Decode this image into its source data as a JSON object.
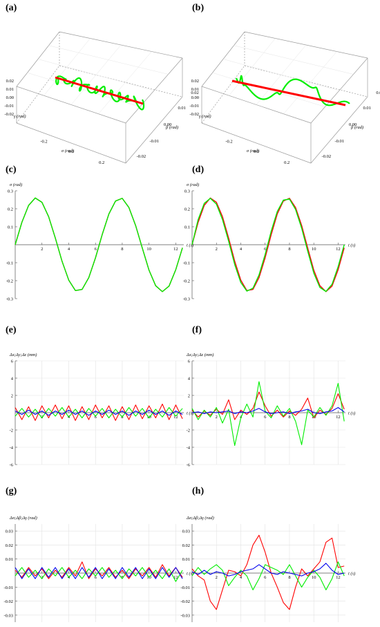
{
  "panel_labels": [
    "(a)",
    "(b)",
    "(c)",
    "(d)",
    "(e)",
    "(f)",
    "(g)",
    "(h)"
  ],
  "colors": {
    "reference": "#ff0000",
    "measured": "#00ee00",
    "third": "#0000ee",
    "grid": "#dddddd",
    "box": "#888888"
  },
  "chart_data": [
    {
      "panel": "(a)",
      "type": "line3d",
      "axis_labels": {
        "x": "σ (rad)",
        "y": "β (rad)",
        "z": "γ (rad)"
      },
      "x_ticks": [
        "-0.2",
        "0.0",
        "0.2"
      ],
      "y_ticks": [
        "0.02",
        "0.01",
        "0.00",
        "-0.01",
        "-0.02"
      ],
      "z_ticks": [
        "0.02",
        "0.01",
        "0.00",
        "-0.01",
        "-0.02"
      ],
      "series": [
        {
          "color": "#ff0000",
          "points": [
            [
              -0.26,
              0.0,
              0.0
            ],
            [
              0.26,
              0.0,
              0.0
            ]
          ]
        },
        {
          "color": "#00ee00",
          "pattern": "dense oscillation around reference",
          "amplitude_beta": 0.004,
          "amplitude_gamma": 0.004
        }
      ]
    },
    {
      "panel": "(b)",
      "type": "line3d",
      "axis_labels": {
        "x": "σ (rad)",
        "y": "β (rad)",
        "z": "γ (rad)"
      },
      "x_ticks": [
        "-0.2",
        "0.0",
        "0.2"
      ],
      "y_ticks": [
        "0.02",
        "0.01",
        "0.00",
        "-0.01",
        "-0.02"
      ],
      "z_ticks": [
        "0.02",
        "0.01",
        "0.00",
        "-0.01",
        "-0.02"
      ],
      "series": [
        {
          "color": "#ff0000",
          "points": [
            [
              -0.26,
              0.0,
              0.0
            ],
            [
              0.26,
              0.0,
              0.0
            ]
          ]
        },
        {
          "color": "#00ee00",
          "pattern": "large loops around reference",
          "amplitude_beta": 0.012,
          "amplitude_gamma": 0.01
        }
      ]
    },
    {
      "panel": "(c)",
      "type": "line",
      "ylabel": "σ (rad)",
      "xlabel": "t (s)",
      "xlim": [
        0,
        12.6
      ],
      "ylim": [
        -0.3,
        0.3
      ],
      "x_ticks": [
        2,
        4,
        6,
        8,
        10,
        12
      ],
      "y_ticks": [
        -0.3,
        -0.2,
        -0.1,
        0.1,
        0.2,
        0.3
      ],
      "x": [
        0,
        0.5,
        1,
        1.5,
        2,
        2.5,
        3,
        3.5,
        4,
        4.5,
        5,
        5.5,
        6,
        6.5,
        7,
        7.5,
        8,
        8.5,
        9,
        9.5,
        10,
        10.5,
        11,
        11.5,
        12,
        12.5
      ],
      "series": [
        {
          "color": "#ff0000",
          "values": [
            0,
            0.125,
            0.219,
            0.26,
            0.236,
            0.156,
            0.037,
            -0.092,
            -0.197,
            -0.255,
            -0.249,
            -0.183,
            -0.073,
            0.056,
            0.171,
            0.243,
            0.258,
            0.207,
            0.107,
            -0.019,
            -0.142,
            -0.228,
            -0.261,
            -0.23,
            -0.139,
            -0.017
          ]
        },
        {
          "color": "#00ee00",
          "values": [
            0,
            0.125,
            0.219,
            0.26,
            0.236,
            0.156,
            0.037,
            -0.092,
            -0.197,
            -0.255,
            -0.249,
            -0.183,
            -0.073,
            0.056,
            0.171,
            0.243,
            0.258,
            0.207,
            0.107,
            -0.019,
            -0.142,
            -0.228,
            -0.261,
            -0.23,
            -0.139,
            -0.017
          ]
        }
      ]
    },
    {
      "panel": "(d)",
      "type": "line",
      "ylabel": "σ (rad)",
      "xlabel": "t (s)",
      "xlim": [
        0,
        12.6
      ],
      "ylim": [
        -0.3,
        0.3
      ],
      "x_ticks": [
        2,
        4,
        6,
        8,
        10,
        12
      ],
      "y_ticks": [
        -0.3,
        -0.2,
        -0.1,
        0.1,
        0.2,
        0.3
      ],
      "x": [
        0,
        0.5,
        1,
        1.5,
        2,
        2.5,
        3,
        3.5,
        4,
        4.5,
        5,
        5.5,
        6,
        6.5,
        7,
        7.5,
        8,
        8.5,
        9,
        9.5,
        10,
        10.5,
        11,
        11.5,
        12,
        12.5
      ],
      "series": [
        {
          "color": "#ff0000",
          "values": [
            0,
            0.125,
            0.219,
            0.26,
            0.236,
            0.156,
            0.037,
            -0.092,
            -0.197,
            -0.255,
            -0.249,
            -0.183,
            -0.073,
            0.056,
            0.171,
            0.243,
            0.258,
            0.207,
            0.107,
            -0.019,
            -0.142,
            -0.228,
            -0.261,
            -0.23,
            -0.139,
            -0.017
          ]
        },
        {
          "color": "#00ee00",
          "values": [
            0,
            0.14,
            0.23,
            0.258,
            0.226,
            0.14,
            0.02,
            -0.11,
            -0.21,
            -0.258,
            -0.242,
            -0.168,
            -0.055,
            0.075,
            0.185,
            0.248,
            0.254,
            0.196,
            0.092,
            -0.036,
            -0.158,
            -0.238,
            -0.26,
            -0.22,
            -0.122,
            0.0
          ]
        }
      ]
    },
    {
      "panel": "(e)",
      "type": "line",
      "ylabel": "Δx;Δy;Δz (mm)",
      "xlabel": "t (s)",
      "xlim": [
        0,
        12.6
      ],
      "ylim": [
        -6,
        6
      ],
      "x_ticks": [
        2,
        4,
        6,
        8,
        10,
        12
      ],
      "y_ticks": [
        -6,
        -4,
        -2,
        2,
        4,
        6
      ],
      "x": [
        0,
        0.5,
        1,
        1.5,
        2,
        2.5,
        3,
        3.5,
        4,
        4.5,
        5,
        5.5,
        6,
        6.5,
        7,
        7.5,
        8,
        8.5,
        9,
        9.5,
        10,
        10.5,
        11,
        11.5,
        12,
        12.5
      ],
      "series": [
        {
          "color": "#ff0000",
          "values": [
            0.6,
            -0.8,
            0.7,
            -0.9,
            0.8,
            -0.6,
            0.9,
            -0.7,
            0.8,
            -0.9,
            0.7,
            -0.8,
            0.9,
            -0.6,
            0.8,
            -0.9,
            0.7,
            -0.8,
            0.9,
            -0.7,
            0.8,
            -0.6,
            1.0,
            -0.8,
            0.9,
            -0.7
          ]
        },
        {
          "color": "#00ee00",
          "values": [
            -0.4,
            0.5,
            -0.5,
            0.4,
            -0.6,
            0.5,
            -0.4,
            0.6,
            -0.5,
            0.4,
            -0.6,
            0.5,
            -0.4,
            0.5,
            -0.6,
            0.4,
            -0.5,
            0.6,
            -0.4,
            0.5,
            -0.6,
            0.4,
            -0.5,
            0.6,
            -0.4,
            0.5
          ]
        },
        {
          "color": "#0000ee",
          "values": [
            0.2,
            -0.2,
            0.3,
            -0.2,
            0.2,
            -0.3,
            0.2,
            -0.2,
            0.3,
            -0.2,
            0.2,
            -0.3,
            0.2,
            -0.2,
            0.3,
            -0.2,
            0.2,
            -0.3,
            0.2,
            -0.2,
            0.3,
            -0.2,
            0.2,
            -0.3,
            0.2,
            -0.2
          ]
        }
      ]
    },
    {
      "panel": "(f)",
      "type": "line",
      "ylabel": "Δx;Δy;Δz (mm)",
      "xlabel": "t (s)",
      "xlim": [
        0,
        12.6
      ],
      "ylim": [
        -6,
        6
      ],
      "x_ticks": [
        2,
        4,
        6,
        8,
        10,
        12
      ],
      "y_ticks": [
        -6,
        -4,
        -2,
        2,
        4,
        6
      ],
      "x": [
        0,
        0.5,
        1,
        1.5,
        2,
        2.5,
        3,
        3.5,
        4,
        4.5,
        5,
        5.5,
        6,
        6.5,
        7,
        7.5,
        8,
        8.5,
        9,
        9.5,
        10,
        10.5,
        11,
        11.5,
        12,
        12.5
      ],
      "series": [
        {
          "color": "#ff0000",
          "values": [
            0.3,
            -0.5,
            0.2,
            -0.3,
            0.4,
            -0.2,
            1.5,
            -0.8,
            0.3,
            -0.2,
            0.5,
            2.4,
            0.8,
            -0.4,
            0.3,
            -0.5,
            0.2,
            -0.3,
            0.4,
            1.7,
            -0.6,
            0.3,
            -0.2,
            0.5,
            2.2,
            0.4
          ]
        },
        {
          "color": "#00ee00",
          "values": [
            0.5,
            -0.8,
            0.3,
            -0.5,
            0.6,
            -1.2,
            0.4,
            -3.8,
            -0.6,
            1.0,
            -0.5,
            3.6,
            0.2,
            -0.6,
            0.8,
            -0.4,
            0.5,
            -1.0,
            -3.7,
            0.3,
            -0.5,
            0.6,
            -0.3,
            0.8,
            3.4,
            -1.0
          ]
        },
        {
          "color": "#0000ee",
          "values": [
            0.0,
            0.1,
            -0.1,
            0.1,
            0.0,
            0.1,
            0.2,
            -0.1,
            0.1,
            0.0,
            0.2,
            0.5,
            0.1,
            -0.1,
            0.0,
            0.1,
            -0.1,
            0.1,
            0.2,
            0.4,
            0.0,
            -0.1,
            0.1,
            0.2,
            0.6,
            0.1
          ]
        }
      ]
    },
    {
      "panel": "(g)",
      "type": "line",
      "ylabel": "Δσ;Δβ;Δγ (rad)",
      "xlabel": "t (s)",
      "xlim": [
        0,
        12.6
      ],
      "ylim": [
        -0.035,
        0.035
      ],
      "x_ticks": [
        2,
        4,
        6,
        8,
        10,
        12
      ],
      "y_ticks": [
        -0.03,
        -0.02,
        -0.01,
        0.01,
        0.02,
        0.03
      ],
      "x": [
        0,
        0.5,
        1,
        1.5,
        2,
        2.5,
        3,
        3.5,
        4,
        4.5,
        5,
        5.5,
        6,
        6.5,
        7,
        7.5,
        8,
        8.5,
        9,
        9.5,
        10,
        10.5,
        11,
        11.5,
        12,
        12.5
      ],
      "series": [
        {
          "color": "#ff0000",
          "values": [
            0.002,
            -0.003,
            0.004,
            -0.002,
            0.003,
            -0.004,
            0.002,
            -0.003,
            0.004,
            -0.002,
            0.008,
            -0.004,
            0.003,
            -0.002,
            0.004,
            -0.003,
            0.002,
            -0.004,
            0.003,
            -0.002,
            0.004,
            -0.003,
            0.006,
            -0.002,
            0.004,
            -0.003
          ]
        },
        {
          "color": "#00ee00",
          "values": [
            -0.002,
            0.004,
            -0.003,
            0.002,
            -0.004,
            0.003,
            -0.002,
            0.004,
            -0.003,
            0.002,
            -0.004,
            0.003,
            -0.002,
            0.004,
            -0.003,
            0.002,
            -0.004,
            0.003,
            -0.002,
            0.004,
            -0.003,
            0.002,
            -0.004,
            0.003,
            -0.006,
            0.002
          ]
        },
        {
          "color": "#0000ee",
          "values": [
            0.004,
            -0.004,
            0.003,
            -0.004,
            0.004,
            -0.003,
            0.004,
            -0.004,
            0.003,
            -0.004,
            0.004,
            -0.003,
            0.004,
            -0.004,
            0.003,
            -0.004,
            0.004,
            -0.003,
            0.004,
            -0.004,
            0.003,
            -0.004,
            0.004,
            -0.003,
            0.004,
            -0.004
          ]
        }
      ]
    },
    {
      "panel": "(h)",
      "type": "line",
      "ylabel": "Δσ;Δβ;Δγ (rad)",
      "xlabel": "t (s)",
      "xlim": [
        0,
        12.6
      ],
      "ylim": [
        -0.035,
        0.035
      ],
      "x_ticks": [
        2,
        4,
        6,
        8,
        10,
        12
      ],
      "y_ticks": [
        -0.03,
        -0.02,
        -0.01,
        0.01,
        0.02,
        0.03
      ],
      "x": [
        0,
        0.5,
        1,
        1.5,
        2,
        2.5,
        3,
        3.5,
        4,
        4.5,
        5,
        5.5,
        6,
        6.5,
        7,
        7.5,
        8,
        8.5,
        9,
        9.5,
        10,
        10.5,
        11,
        11.5,
        12,
        12.5
      ],
      "series": [
        {
          "color": "#ff0000",
          "values": [
            0.003,
            -0.002,
            -0.005,
            -0.02,
            -0.026,
            -0.012,
            0.002,
            0.001,
            -0.002,
            0.006,
            0.02,
            0.027,
            0.015,
            0.0,
            -0.01,
            -0.021,
            -0.026,
            -0.01,
            0.003,
            -0.002,
            0.003,
            0.008,
            0.022,
            0.025,
            0.004,
            0.005
          ]
        },
        {
          "color": "#00ee00",
          "values": [
            -0.002,
            0.004,
            -0.001,
            0.003,
            0.006,
            0.002,
            -0.009,
            -0.003,
            0.002,
            -0.002,
            -0.012,
            -0.004,
            0.006,
            0.004,
            0.002,
            -0.001,
            0.006,
            -0.002,
            -0.01,
            -0.003,
            0.002,
            -0.003,
            -0.012,
            -0.004,
            0.008,
            -0.002
          ]
        },
        {
          "color": "#0000ee",
          "values": [
            0.001,
            -0.001,
            0.002,
            -0.001,
            0.001,
            0.0,
            -0.002,
            -0.001,
            0.001,
            0.002,
            0.003,
            0.006,
            0.003,
            0.0,
            -0.001,
            0.001,
            0.0,
            -0.001,
            -0.002,
            0.0,
            0.001,
            0.003,
            0.007,
            0.002,
            -0.001,
            0.0
          ]
        }
      ]
    }
  ]
}
